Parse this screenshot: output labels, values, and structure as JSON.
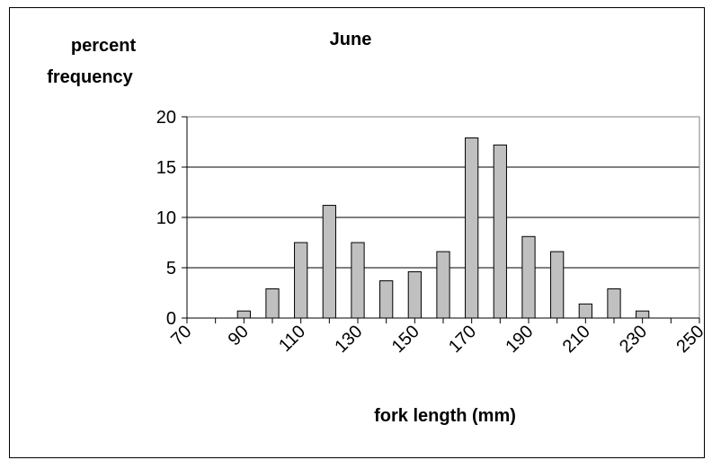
{
  "chart_data": {
    "type": "bar",
    "title": "June",
    "ylabel_lines": [
      "percent",
      "frequency"
    ],
    "xlabel": "fork length (mm)",
    "x": [
      80,
      90,
      100,
      110,
      120,
      130,
      140,
      150,
      160,
      170,
      180,
      190,
      200,
      210,
      220,
      230,
      240
    ],
    "values": [
      0,
      0.7,
      2.9,
      7.5,
      11.2,
      7.5,
      3.7,
      4.6,
      6.6,
      17.9,
      17.2,
      8.1,
      6.6,
      1.4,
      2.9,
      0.7,
      0
    ],
    "xlim": [
      70,
      250
    ],
    "ylim": [
      0,
      20
    ],
    "y_ticks": [
      0,
      5,
      10,
      15,
      20
    ],
    "x_tick_labels": [
      "70",
      "90",
      "110",
      "130",
      "150",
      "170",
      "190",
      "210",
      "230",
      "250"
    ],
    "grid": true,
    "bar_color": "#c0c0c0"
  }
}
